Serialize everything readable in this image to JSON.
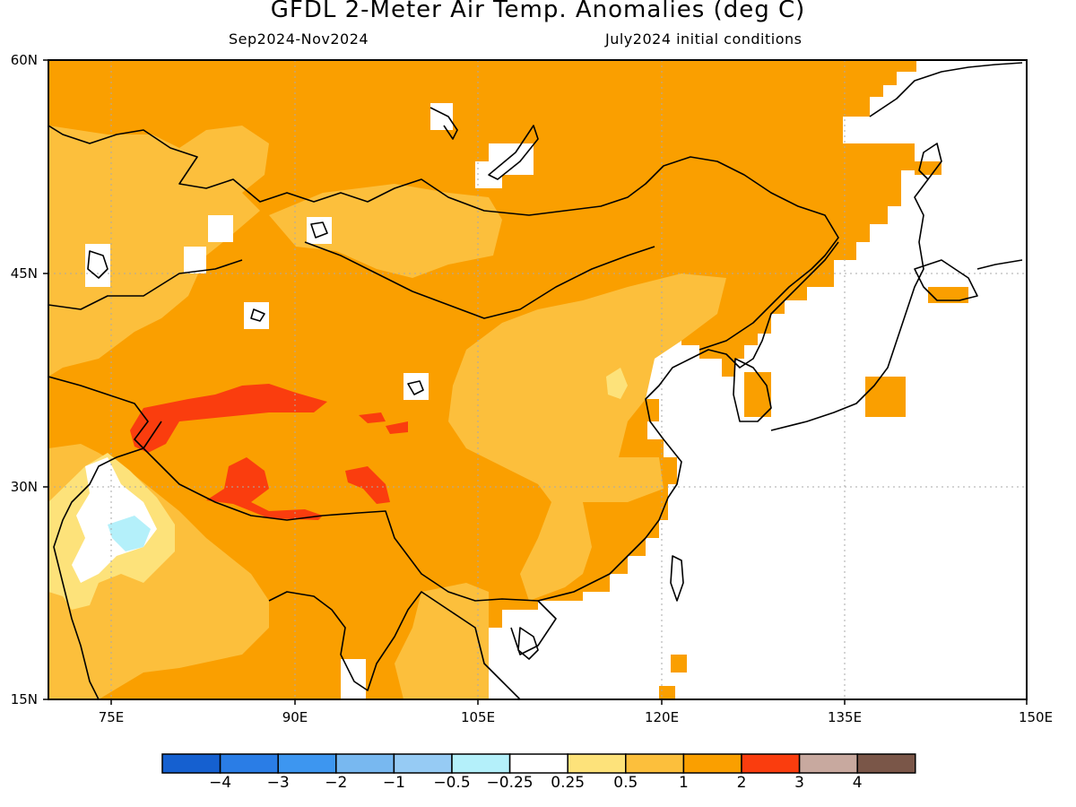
{
  "title": "GFDL 2-Meter Air Temp. Anomalies (deg C)",
  "subtitle_left": "Sep2024-Nov2024",
  "subtitle_right": "July2024 initial conditions",
  "lat_labels": [
    "60N",
    "45N",
    "30N",
    "15N"
  ],
  "lon_labels": [
    "75E",
    "90E",
    "105E",
    "120E",
    "135E",
    "150E"
  ],
  "colorbar": {
    "colors": [
      "#1560d0",
      "#2a7de6",
      "#3d96f0",
      "#78b8f0",
      "#96cbf4",
      "#b4f0fa",
      "#ffffff",
      "#fde27a",
      "#fcbf3c",
      "#fa9f00",
      "#fa3d0e",
      "#c8a99f",
      "#7a5648"
    ],
    "labels": [
      "−4",
      "−3",
      "−2",
      "−1",
      "−0.5",
      "−0.25",
      "0.25",
      "0.5",
      "1",
      "2",
      "3",
      "4"
    ]
  },
  "fill_colors": {
    "ocean": "#ffffff",
    "anomaly_1_2": "#fa9f00",
    "anomaly_0_5_1": "#fcbf3c",
    "anomaly_0_25_0_5": "#fde27a",
    "anomaly_2_3": "#fa3d0e",
    "anomaly_neg_0_5": "#b4f0fa"
  }
}
